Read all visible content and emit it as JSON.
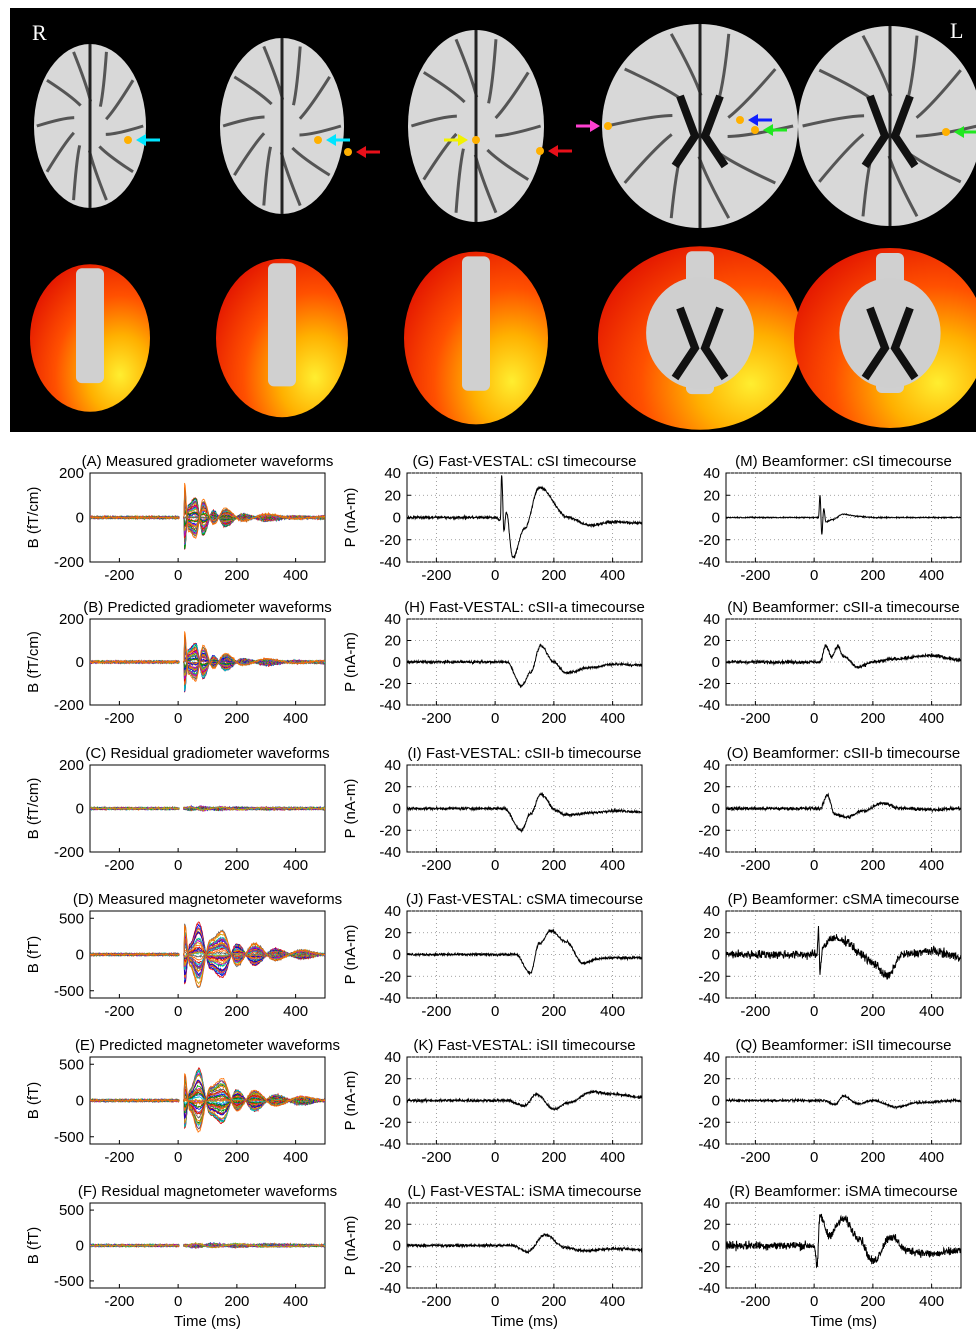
{
  "brain": {
    "left_side_label": "R",
    "right_side_label": "L",
    "arrow_colors": [
      "#00e5ff",
      "#e8101a",
      "#f2f200",
      "#ff40d0",
      "#1020ff",
      "#20e820"
    ],
    "heat_colors": [
      "#e01000",
      "#ff5000",
      "#ffb000",
      "#ffee30"
    ]
  },
  "shared": {
    "x_ticks": [
      -200,
      0,
      200,
      400
    ],
    "x_range": [
      -300,
      500
    ],
    "xlabel": "Time (ms)",
    "line_color": "#000000",
    "multichannel_colors": [
      "#e00000",
      "#0000e0",
      "#00a000",
      "#00c8c8",
      "#c000c0",
      "#c8a000",
      "#606060",
      "#ff7000"
    ]
  },
  "chart_data": [
    {
      "id": "A",
      "title": "(A) Measured gradiometer waveforms",
      "type": "line",
      "ylabel": "B (fT/cm)",
      "ylim": [
        -200,
        200
      ],
      "y_ticks": [
        -200,
        0,
        200
      ],
      "grid": false,
      "multichannel": true,
      "channels": 40,
      "profile": [
        [
          -300,
          0
        ],
        [
          20,
          0
        ],
        [
          22,
          150
        ],
        [
          35,
          -60
        ],
        [
          60,
          -90
        ],
        [
          85,
          80
        ],
        [
          120,
          -30
        ],
        [
          160,
          40
        ],
        [
          220,
          -15
        ],
        [
          300,
          15
        ],
        [
          400,
          -5
        ],
        [
          500,
          5
        ]
      ]
    },
    {
      "id": "B",
      "title": "(B) Predicted gradiometer waveforms",
      "type": "line",
      "ylabel": "B (fT/cm)",
      "ylim": [
        -200,
        200
      ],
      "y_ticks": [
        -200,
        0,
        200
      ],
      "grid": false,
      "multichannel": true,
      "channels": 40,
      "profile": [
        [
          -300,
          0
        ],
        [
          20,
          0
        ],
        [
          22,
          140
        ],
        [
          35,
          -55
        ],
        [
          60,
          -85
        ],
        [
          85,
          75
        ],
        [
          120,
          -28
        ],
        [
          160,
          38
        ],
        [
          220,
          -14
        ],
        [
          300,
          14
        ],
        [
          400,
          -5
        ],
        [
          500,
          5
        ]
      ]
    },
    {
      "id": "C",
      "title": "(C) Residual gradiometer waveforms",
      "type": "line",
      "ylabel": "B (fT/cm)",
      "ylim": [
        -200,
        200
      ],
      "y_ticks": [
        -200,
        0,
        200
      ],
      "grid": false,
      "multichannel": true,
      "channels": 30,
      "profile": [
        [
          -300,
          0
        ],
        [
          20,
          0
        ],
        [
          40,
          8
        ],
        [
          80,
          -8
        ],
        [
          140,
          6
        ],
        [
          200,
          -4
        ],
        [
          300,
          3
        ],
        [
          500,
          0
        ]
      ]
    },
    {
      "id": "D",
      "title": "(D) Measured magnetometer waveforms",
      "type": "line",
      "ylabel": "B (fT)",
      "ylim": [
        -600,
        600
      ],
      "y_ticks": [
        -500,
        0,
        500
      ],
      "grid": false,
      "multichannel": true,
      "channels": 40,
      "profile": [
        [
          -300,
          0
        ],
        [
          20,
          0
        ],
        [
          22,
          420
        ],
        [
          40,
          -150
        ],
        [
          70,
          -450
        ],
        [
          110,
          200
        ],
        [
          150,
          320
        ],
        [
          200,
          -150
        ],
        [
          260,
          150
        ],
        [
          330,
          -80
        ],
        [
          420,
          60
        ],
        [
          500,
          0
        ]
      ]
    },
    {
      "id": "E",
      "title": "(E) Predicted magnetometer waveforms",
      "type": "line",
      "ylabel": "B (fT)",
      "ylim": [
        -600,
        600
      ],
      "y_ticks": [
        -500,
        0,
        500
      ],
      "grid": false,
      "multichannel": true,
      "channels": 40,
      "profile": [
        [
          -300,
          0
        ],
        [
          20,
          0
        ],
        [
          22,
          380
        ],
        [
          40,
          -140
        ],
        [
          70,
          -430
        ],
        [
          110,
          190
        ],
        [
          150,
          300
        ],
        [
          200,
          -140
        ],
        [
          260,
          140
        ],
        [
          330,
          -75
        ],
        [
          420,
          55
        ],
        [
          500,
          0
        ]
      ]
    },
    {
      "id": "F",
      "title": "(F) Residual magnetometer waveforms",
      "type": "line",
      "ylabel": "B (fT)",
      "ylim": [
        -600,
        600
      ],
      "y_ticks": [
        -500,
        0,
        500
      ],
      "grid": false,
      "multichannel": true,
      "channels": 30,
      "profile": [
        [
          -300,
          0
        ],
        [
          20,
          0
        ],
        [
          60,
          25
        ],
        [
          120,
          -25
        ],
        [
          200,
          20
        ],
        [
          300,
          -15
        ],
        [
          500,
          0
        ]
      ]
    },
    {
      "id": "G",
      "title": "(G) Fast-VESTAL: cSI timecourse",
      "type": "line",
      "ylabel": "P (nA-m)",
      "ylim": [
        -40,
        40
      ],
      "y_ticks": [
        -40,
        -20,
        0,
        20,
        40
      ],
      "grid": true,
      "noise": 1.2,
      "profile": [
        [
          -300,
          0
        ],
        [
          0,
          0
        ],
        [
          18,
          -2
        ],
        [
          22,
          38
        ],
        [
          30,
          -12
        ],
        [
          38,
          5
        ],
        [
          60,
          -36
        ],
        [
          100,
          -10
        ],
        [
          150,
          27
        ],
        [
          250,
          0
        ],
        [
          320,
          -7
        ],
        [
          400,
          -4
        ],
        [
          500,
          -5
        ]
      ]
    },
    {
      "id": "H",
      "title": "(H) Fast-VESTAL: cSII-a timecourse",
      "type": "line",
      "ylabel": "P (nA-m)",
      "ylim": [
        -40,
        40
      ],
      "y_ticks": [
        -40,
        -20,
        0,
        20,
        40
      ],
      "grid": true,
      "noise": 1.2,
      "profile": [
        [
          -300,
          0
        ],
        [
          40,
          0
        ],
        [
          90,
          -22
        ],
        [
          120,
          -10
        ],
        [
          155,
          15
        ],
        [
          200,
          0
        ],
        [
          240,
          -10
        ],
        [
          330,
          -5
        ],
        [
          400,
          -2
        ],
        [
          500,
          -3
        ]
      ]
    },
    {
      "id": "I",
      "title": "(I) Fast-VESTAL: cSII-b timecourse",
      "type": "line",
      "ylabel": "P (nA-m)",
      "ylim": [
        -40,
        40
      ],
      "y_ticks": [
        -40,
        -20,
        0,
        20,
        40
      ],
      "grid": true,
      "noise": 1.2,
      "profile": [
        [
          -300,
          0
        ],
        [
          30,
          0
        ],
        [
          90,
          -20
        ],
        [
          120,
          -5
        ],
        [
          155,
          13
        ],
        [
          210,
          -2
        ],
        [
          240,
          -6
        ],
        [
          330,
          -4
        ],
        [
          400,
          -2
        ],
        [
          500,
          -3
        ]
      ]
    },
    {
      "id": "J",
      "title": "(J) Fast-VESTAL: cSMA timecourse",
      "type": "line",
      "ylabel": "P (nA-m)",
      "ylim": [
        -40,
        40
      ],
      "y_ticks": [
        -40,
        -20,
        0,
        20,
        40
      ],
      "grid": true,
      "noise": 1.2,
      "profile": [
        [
          -300,
          0
        ],
        [
          70,
          0
        ],
        [
          120,
          -17
        ],
        [
          150,
          10
        ],
        [
          190,
          22
        ],
        [
          240,
          12
        ],
        [
          300,
          -8
        ],
        [
          350,
          -4
        ],
        [
          400,
          -3
        ],
        [
          500,
          -3
        ]
      ]
    },
    {
      "id": "K",
      "title": "(K) Fast-VESTAL: iSII timecourse",
      "type": "line",
      "ylabel": "P (nA-m)",
      "ylim": [
        -40,
        40
      ],
      "y_ticks": [
        -40,
        -20,
        0,
        20,
        40
      ],
      "grid": true,
      "noise": 1.2,
      "profile": [
        [
          -300,
          0
        ],
        [
          40,
          0
        ],
        [
          100,
          -5
        ],
        [
          140,
          6
        ],
        [
          200,
          -8
        ],
        [
          250,
          -2
        ],
        [
          330,
          8
        ],
        [
          400,
          6
        ],
        [
          500,
          3
        ]
      ]
    },
    {
      "id": "L",
      "title": "(L) Fast-VESTAL: iSMA timecourse",
      "type": "line",
      "ylabel": "P (nA-m)",
      "ylim": [
        -40,
        40
      ],
      "y_ticks": [
        -40,
        -20,
        0,
        20,
        40
      ],
      "grid": true,
      "noise": 1.2,
      "profile": [
        [
          -300,
          0
        ],
        [
          60,
          0
        ],
        [
          110,
          -6
        ],
        [
          170,
          10
        ],
        [
          240,
          -2
        ],
        [
          300,
          -5
        ],
        [
          400,
          -3
        ],
        [
          500,
          -4
        ]
      ]
    },
    {
      "id": "M",
      "title": "(M) Beamformer: cSI timecourse",
      "type": "line",
      "ylabel": "",
      "ylim": [
        -40,
        40
      ],
      "y_ticks": [
        -40,
        -20,
        0,
        20,
        40
      ],
      "grid": true,
      "noise": 0.5,
      "profile": [
        [
          -300,
          0
        ],
        [
          15,
          0
        ],
        [
          20,
          20
        ],
        [
          26,
          -15
        ],
        [
          33,
          8
        ],
        [
          40,
          -4
        ],
        [
          60,
          -2
        ],
        [
          100,
          3
        ],
        [
          150,
          1
        ],
        [
          200,
          0
        ],
        [
          500,
          0
        ]
      ]
    },
    {
      "id": "N",
      "title": "(N) Beamformer: cSII-a timecourse",
      "type": "line",
      "ylabel": "",
      "ylim": [
        -40,
        40
      ],
      "y_ticks": [
        -40,
        -20,
        0,
        20,
        40
      ],
      "grid": true,
      "noise": 1.5,
      "profile": [
        [
          -300,
          0
        ],
        [
          20,
          0
        ],
        [
          40,
          15
        ],
        [
          60,
          5
        ],
        [
          80,
          15
        ],
        [
          100,
          5
        ],
        [
          150,
          -5
        ],
        [
          200,
          0
        ],
        [
          280,
          3
        ],
        [
          400,
          6
        ],
        [
          500,
          2
        ]
      ]
    },
    {
      "id": "O",
      "title": "(O) Beamformer: cSII-b timecourse",
      "type": "line",
      "ylabel": "",
      "ylim": [
        -40,
        40
      ],
      "y_ticks": [
        -40,
        -20,
        0,
        20,
        40
      ],
      "grid": true,
      "noise": 1.5,
      "profile": [
        [
          -300,
          0
        ],
        [
          20,
          0
        ],
        [
          45,
          12
        ],
        [
          70,
          -5
        ],
        [
          110,
          -8
        ],
        [
          170,
          -2
        ],
        [
          230,
          5
        ],
        [
          300,
          0
        ],
        [
          400,
          -1
        ],
        [
          500,
          0
        ]
      ]
    },
    {
      "id": "P",
      "title": "(P) Beamformer: cSMA timecourse",
      "type": "line",
      "ylabel": "",
      "ylim": [
        -40,
        40
      ],
      "y_ticks": [
        -40,
        -20,
        0,
        20,
        40
      ],
      "grid": true,
      "noise": 4,
      "profile": [
        [
          -300,
          0
        ],
        [
          10,
          0
        ],
        [
          15,
          22
        ],
        [
          20,
          -15
        ],
        [
          30,
          8
        ],
        [
          60,
          15
        ],
        [
          110,
          12
        ],
        [
          160,
          0
        ],
        [
          200,
          -8
        ],
        [
          250,
          -20
        ],
        [
          300,
          0
        ],
        [
          400,
          3
        ],
        [
          500,
          -2
        ]
      ]
    },
    {
      "id": "Q",
      "title": "(Q) Beamformer: iSII timecourse",
      "type": "line",
      "ylabel": "",
      "ylim": [
        -40,
        40
      ],
      "y_ticks": [
        -40,
        -20,
        0,
        20,
        40
      ],
      "grid": true,
      "noise": 1,
      "profile": [
        [
          -300,
          0
        ],
        [
          40,
          0
        ],
        [
          70,
          -4
        ],
        [
          100,
          4
        ],
        [
          150,
          -3
        ],
        [
          200,
          0
        ],
        [
          280,
          -6
        ],
        [
          350,
          -2
        ],
        [
          500,
          0
        ]
      ]
    },
    {
      "id": "R",
      "title": "(R) Beamformer: iSMA timecourse",
      "type": "line",
      "ylabel": "",
      "ylim": [
        -40,
        40
      ],
      "y_ticks": [
        -40,
        -20,
        0,
        20,
        40
      ],
      "grid": true,
      "noise": 4,
      "profile": [
        [
          -300,
          0
        ],
        [
          0,
          0
        ],
        [
          10,
          -20
        ],
        [
          20,
          28
        ],
        [
          50,
          10
        ],
        [
          100,
          25
        ],
        [
          150,
          8
        ],
        [
          200,
          -15
        ],
        [
          260,
          8
        ],
        [
          320,
          -5
        ],
        [
          400,
          -8
        ],
        [
          500,
          -5
        ]
      ]
    }
  ]
}
